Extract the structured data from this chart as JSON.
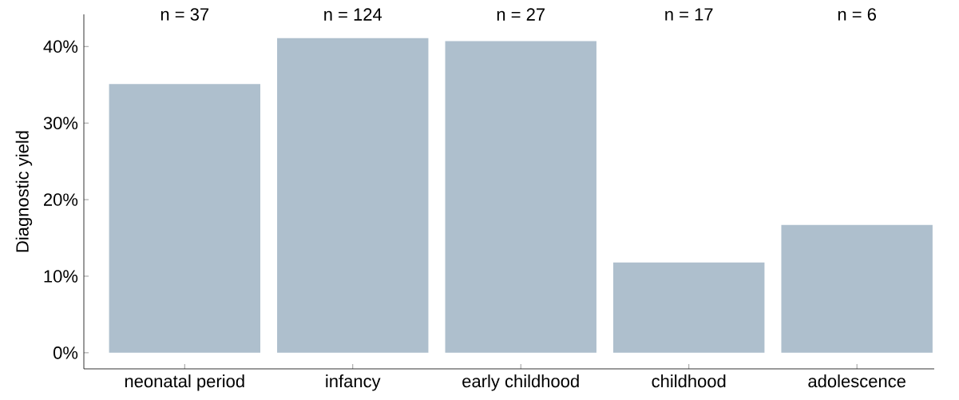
{
  "chart_data": {
    "type": "bar",
    "ylabel": "Diagnostic yield",
    "categories": [
      "neonatal period",
      "infancy",
      "early childhood",
      "childhood",
      "adolescence"
    ],
    "values": [
      35.1,
      41.1,
      40.7,
      11.8,
      16.7
    ],
    "color": "#aebfcd",
    "ylim": [
      -2.1,
      44.2
    ],
    "yticks": [
      {
        "value": 0,
        "label": "0%"
      },
      {
        "value": 10,
        "label": "10%"
      },
      {
        "value": 20,
        "label": "20%"
      },
      {
        "value": 30,
        "label": "30%"
      },
      {
        "value": 40,
        "label": "40%"
      }
    ],
    "grid": false,
    "annotations": [
      "n = 37",
      "n = 124",
      "n = 27",
      "n = 17",
      "n = 6"
    ]
  }
}
